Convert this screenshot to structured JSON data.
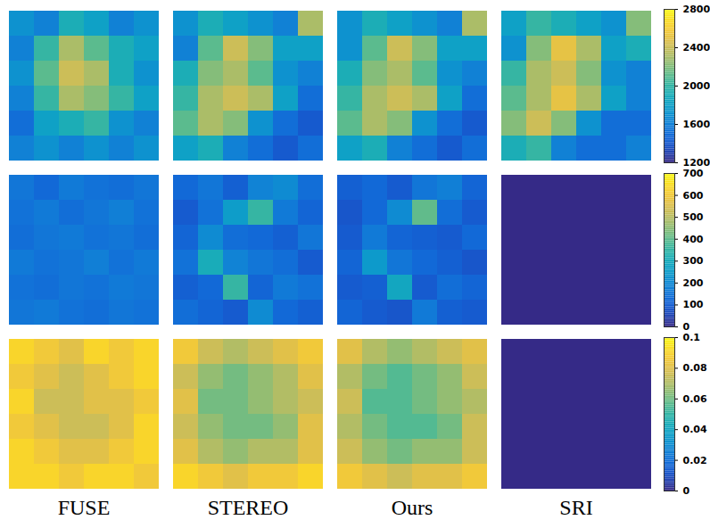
{
  "chart_data": {
    "type": "heatmap",
    "columns": [
      "FUSE",
      "STEREO",
      "Ours",
      "SRI"
    ],
    "rows": [
      {
        "colorbar": {
          "range": [
            1200,
            2800
          ],
          "ticks": [
            1200,
            1600,
            2000,
            2400,
            2800
          ]
        },
        "panels": [
          [
            [
              1700,
              1600,
              1900,
              1800,
              1600,
              1700
            ],
            [
              1600,
              2000,
              2300,
              2100,
              1900,
              1800
            ],
            [
              1700,
              2100,
              2400,
              2300,
              1900,
              1700
            ],
            [
              1600,
              2000,
              2300,
              2200,
              2000,
              1800
            ],
            [
              1500,
              1800,
              1900,
              2000,
              1700,
              1600
            ],
            [
              1600,
              1700,
              1600,
              1700,
              1600,
              1700
            ]
          ],
          [
            [
              1700,
              1900,
              1800,
              1700,
              1600,
              2300
            ],
            [
              1600,
              2100,
              2400,
              2200,
              1800,
              1800
            ],
            [
              1900,
              2200,
              2300,
              2100,
              1700,
              1600
            ],
            [
              2000,
              2300,
              2400,
              2300,
              1800,
              1500
            ],
            [
              2100,
              2300,
              2200,
              1700,
              1500,
              1400
            ],
            [
              1800,
              1900,
              1600,
              1500,
              1400,
              1500
            ]
          ],
          [
            [
              1700,
              1900,
              1800,
              1700,
              1600,
              2300
            ],
            [
              1700,
              2100,
              2400,
              2200,
              1800,
              1800
            ],
            [
              1900,
              2200,
              2300,
              2100,
              1700,
              1600
            ],
            [
              2000,
              2300,
              2400,
              2300,
              1800,
              1500
            ],
            [
              2100,
              2300,
              2200,
              1700,
              1500,
              1400
            ],
            [
              1800,
              1900,
              1600,
              1500,
              1400,
              1500
            ]
          ],
          [
            [
              1800,
              2000,
              1900,
              1800,
              1700,
              2200
            ],
            [
              1700,
              2200,
              2500,
              2300,
              1800,
              1900
            ],
            [
              2000,
              2300,
              2400,
              2200,
              1700,
              1600
            ],
            [
              2100,
              2300,
              2500,
              2300,
              1800,
              1600
            ],
            [
              2200,
              2400,
              2200,
              1700,
              1500,
              1500
            ],
            [
              1900,
              2000,
              1600,
              1500,
              1500,
              1600
            ]
          ]
        ]
      },
      {
        "colorbar": {
          "range": [
            0,
            700
          ],
          "ticks": [
            0,
            100,
            200,
            300,
            400,
            500,
            600,
            700
          ]
        },
        "panels": [
          [
            [
              150,
              120,
              160,
              140,
              130,
              150
            ],
            [
              140,
              160,
              130,
              150,
              170,
              140
            ],
            [
              130,
              150,
              160,
              140,
              150,
              130
            ],
            [
              160,
              140,
              150,
              170,
              140,
              160
            ],
            [
              140,
              130,
              150,
              140,
              160,
              150
            ],
            [
              150,
              160,
              140,
              130,
              150,
              140
            ]
          ],
          [
            [
              120,
              150,
              100,
              180,
              200,
              130
            ],
            [
              90,
              140,
              250,
              350,
              160,
              110
            ],
            [
              110,
              200,
              130,
              120,
              100,
              150
            ],
            [
              140,
              300,
              180,
              150,
              130,
              90
            ],
            [
              100,
              120,
              350,
              110,
              160,
              140
            ],
            [
              130,
              110,
              90,
              200,
              120,
              100
            ]
          ],
          [
            [
              100,
              120,
              90,
              150,
              170,
              110
            ],
            [
              80,
              120,
              200,
              400,
              130,
              90
            ],
            [
              90,
              160,
              110,
              100,
              90,
              120
            ],
            [
              110,
              240,
              150,
              120,
              100,
              80
            ],
            [
              90,
              100,
              280,
              90,
              130,
              110
            ],
            [
              110,
              90,
              80,
              160,
              100,
              90
            ]
          ],
          [
            [
              0,
              0,
              0,
              0,
              0,
              0
            ],
            [
              0,
              0,
              0,
              0,
              0,
              0
            ],
            [
              0,
              0,
              0,
              0,
              0,
              0
            ],
            [
              0,
              0,
              0,
              0,
              0,
              0
            ],
            [
              0,
              0,
              0,
              0,
              0,
              0
            ],
            [
              0,
              0,
              0,
              0,
              0,
              0
            ]
          ]
        ]
      },
      {
        "colorbar": {
          "range": [
            0,
            0.1
          ],
          "ticks": [
            0,
            0.02,
            0.04,
            0.06,
            0.08,
            0.1
          ]
        },
        "panels": [
          [
            [
              0.09,
              0.085,
              0.08,
              0.09,
              0.085,
              0.09
            ],
            [
              0.085,
              0.08,
              0.075,
              0.08,
              0.085,
              0.09
            ],
            [
              0.09,
              0.075,
              0.075,
              0.08,
              0.08,
              0.085
            ],
            [
              0.085,
              0.08,
              0.075,
              0.075,
              0.08,
              0.09
            ],
            [
              0.09,
              0.085,
              0.08,
              0.08,
              0.085,
              0.09
            ],
            [
              0.09,
              0.09,
              0.085,
              0.09,
              0.09,
              0.085
            ]
          ],
          [
            [
              0.085,
              0.075,
              0.07,
              0.075,
              0.08,
              0.085
            ],
            [
              0.075,
              0.065,
              0.06,
              0.065,
              0.07,
              0.08
            ],
            [
              0.08,
              0.06,
              0.06,
              0.065,
              0.07,
              0.075
            ],
            [
              0.075,
              0.065,
              0.06,
              0.06,
              0.065,
              0.08
            ],
            [
              0.08,
              0.07,
              0.065,
              0.07,
              0.07,
              0.08
            ],
            [
              0.09,
              0.085,
              0.08,
              0.085,
              0.085,
              0.09
            ]
          ],
          [
            [
              0.08,
              0.07,
              0.065,
              0.07,
              0.075,
              0.08
            ],
            [
              0.07,
              0.06,
              0.055,
              0.06,
              0.065,
              0.075
            ],
            [
              0.075,
              0.055,
              0.055,
              0.06,
              0.065,
              0.07
            ],
            [
              0.07,
              0.06,
              0.055,
              0.055,
              0.06,
              0.075
            ],
            [
              0.075,
              0.065,
              0.06,
              0.065,
              0.065,
              0.075
            ],
            [
              0.085,
              0.08,
              0.075,
              0.08,
              0.08,
              0.085
            ]
          ],
          [
            [
              0,
              0,
              0,
              0,
              0,
              0
            ],
            [
              0,
              0,
              0,
              0,
              0,
              0
            ],
            [
              0,
              0,
              0,
              0,
              0,
              0
            ],
            [
              0,
              0,
              0,
              0,
              0,
              0
            ],
            [
              0,
              0,
              0,
              0,
              0,
              0
            ],
            [
              0,
              0,
              0,
              0,
              0,
              0
            ]
          ]
        ]
      }
    ]
  }
}
